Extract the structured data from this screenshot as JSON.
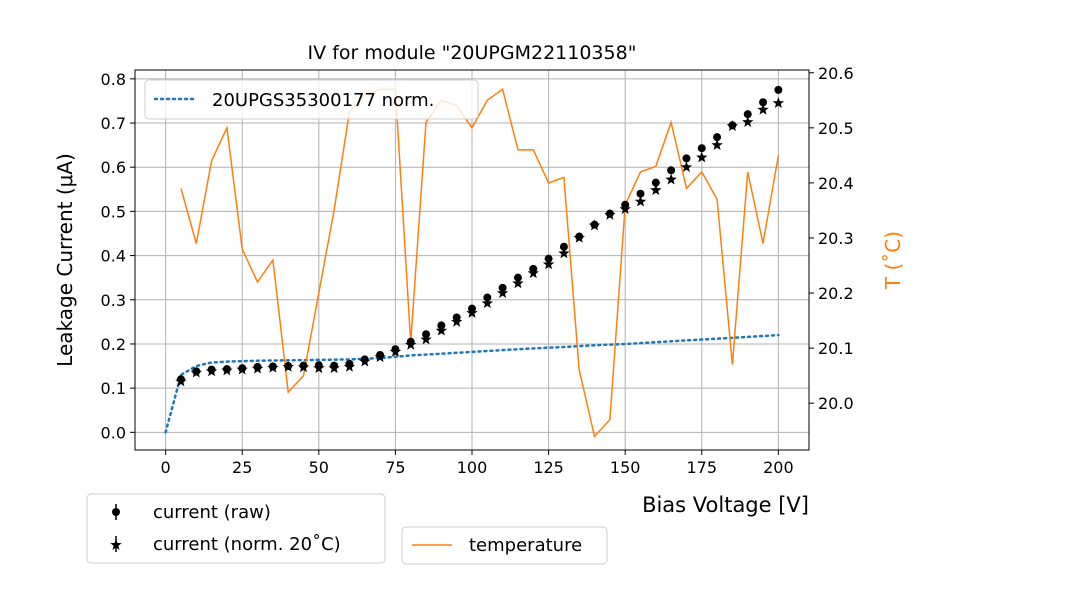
{
  "chart_data": {
    "type": "scatter",
    "title": "IV for module \"20UPGM22110358\"",
    "xlabel": "Bias Voltage [V]",
    "ylabel": "Leakage Current (μA)",
    "y2label": "T (˚C)",
    "xlim": [
      -10,
      210
    ],
    "ylim": [
      -0.04,
      0.82
    ],
    "y2lim": [
      19.915,
      20.605
    ],
    "grid": true,
    "xticks": [
      "0",
      "25",
      "50",
      "75",
      "100",
      "125",
      "150",
      "175",
      "200"
    ],
    "yticks": [
      "0.0",
      "0.1",
      "0.2",
      "0.3",
      "0.4",
      "0.5",
      "0.6",
      "0.7",
      "0.8"
    ],
    "y2ticks": [
      "20.0",
      "20.1",
      "20.2",
      "20.3",
      "20.4",
      "20.5",
      "20.6"
    ],
    "legend_main": {
      "placement": "top-left",
      "entries": [
        "20UPGS35300177 norm."
      ]
    },
    "legend_bottom_left": {
      "placement": "below-left",
      "entries": [
        "current (raw)",
        "current (norm. 20˚C)"
      ]
    },
    "legend_bottom_right": {
      "placement": "below-center",
      "entries": [
        "temperature"
      ]
    },
    "colors": {
      "reference": "#1f77b4",
      "temperature": "#ff7f0e",
      "markers": "#000000",
      "y2axis": "#ff7f0e"
    },
    "series": [
      {
        "name": "current (raw)",
        "style": "dot",
        "x": [
          5,
          10,
          15,
          20,
          25,
          30,
          35,
          40,
          45,
          50,
          55,
          60,
          65,
          70,
          75,
          80,
          85,
          90,
          95,
          100,
          105,
          110,
          115,
          120,
          125,
          130,
          135,
          140,
          145,
          150,
          155,
          160,
          165,
          170,
          175,
          180,
          185,
          190,
          195,
          200
        ],
        "y": [
          0.12,
          0.138,
          0.142,
          0.143,
          0.145,
          0.148,
          0.149,
          0.15,
          0.151,
          0.152,
          0.151,
          0.155,
          0.165,
          0.175,
          0.188,
          0.205,
          0.222,
          0.242,
          0.26,
          0.28,
          0.305,
          0.327,
          0.35,
          0.37,
          0.393,
          0.42,
          0.443,
          0.47,
          0.495,
          0.515,
          0.54,
          0.565,
          0.593,
          0.62,
          0.643,
          0.668,
          0.695,
          0.72,
          0.747,
          0.775
        ]
      },
      {
        "name": "current (norm. 20˚C)",
        "style": "star",
        "x": [
          5,
          10,
          15,
          20,
          25,
          30,
          35,
          40,
          45,
          50,
          55,
          60,
          65,
          70,
          75,
          80,
          85,
          90,
          95,
          100,
          105,
          110,
          115,
          120,
          125,
          130,
          135,
          140,
          145,
          150,
          155,
          160,
          165,
          170,
          175,
          180,
          185,
          190,
          195,
          200
        ],
        "y": [
          0.115,
          0.135,
          0.138,
          0.14,
          0.142,
          0.144,
          0.146,
          0.148,
          0.147,
          0.145,
          0.145,
          0.148,
          0.16,
          0.17,
          0.182,
          0.198,
          0.21,
          0.23,
          0.25,
          0.27,
          0.292,
          0.315,
          0.337,
          0.36,
          0.38,
          0.405,
          0.44,
          0.468,
          0.492,
          0.505,
          0.522,
          0.548,
          0.572,
          0.6,
          0.622,
          0.65,
          0.693,
          0.702,
          0.73,
          0.745
        ]
      },
      {
        "name": "20UPGS35300177 norm.",
        "style": "dotted-line",
        "x": [
          0,
          5,
          10,
          15,
          20,
          30,
          40,
          50,
          60,
          70,
          80,
          90,
          100,
          110,
          120,
          130,
          140,
          150,
          160,
          170,
          180,
          190,
          200
        ],
        "y": [
          0.0,
          0.13,
          0.15,
          0.158,
          0.16,
          0.162,
          0.163,
          0.164,
          0.165,
          0.168,
          0.174,
          0.178,
          0.182,
          0.186,
          0.19,
          0.193,
          0.197,
          0.2,
          0.204,
          0.208,
          0.212,
          0.216,
          0.22
        ]
      },
      {
        "name": "temperature",
        "axis": "right",
        "style": "line",
        "x": [
          5,
          10,
          15,
          20,
          25,
          30,
          35,
          40,
          45,
          50,
          55,
          60,
          65,
          70,
          75,
          80,
          85,
          90,
          95,
          100,
          105,
          110,
          115,
          120,
          125,
          130,
          135,
          140,
          145,
          150,
          155,
          160,
          165,
          170,
          175,
          180,
          185,
          190,
          195,
          200
        ],
        "y": [
          20.39,
          20.29,
          20.44,
          20.5,
          20.28,
          20.22,
          20.26,
          20.02,
          20.05,
          20.2,
          20.35,
          20.53,
          20.56,
          20.57,
          20.57,
          20.11,
          20.51,
          20.55,
          20.54,
          20.5,
          20.55,
          20.57,
          20.46,
          20.46,
          20.4,
          20.41,
          20.06,
          19.94,
          19.97,
          20.36,
          20.42,
          20.43,
          20.51,
          20.39,
          20.42,
          20.37,
          20.07,
          20.42,
          20.29,
          20.45
        ]
      }
    ]
  }
}
